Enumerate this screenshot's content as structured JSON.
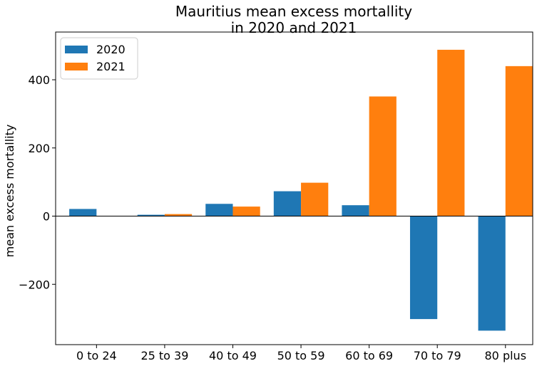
{
  "chart_data": {
    "type": "bar",
    "title_line1": "Mauritius mean excess mortallity",
    "title_line2": "in 2020 and 2021",
    "xlabel": "",
    "ylabel": "mean excess mortallity",
    "categories": [
      "0 to 24",
      "25 to 39",
      "40 to 49",
      "50 to 59",
      "60 to 69",
      "70 to 79",
      "80 plus"
    ],
    "series": [
      {
        "name": "2020",
        "color": "#1f77b4",
        "values": [
          21,
          4,
          36,
          73,
          32,
          -302,
          -336
        ]
      },
      {
        "name": "2021",
        "color": "#ff7f0e",
        "values": [
          0,
          6,
          28,
          98,
          351,
          488,
          440
        ]
      }
    ],
    "ylim": [
      -377,
      540
    ],
    "yticks": [
      -200,
      0,
      200,
      400
    ],
    "ytick_labels": [
      "−200",
      "0",
      "200",
      "400"
    ],
    "legend_position": "upper-left",
    "zero_line": true,
    "grid": false
  }
}
